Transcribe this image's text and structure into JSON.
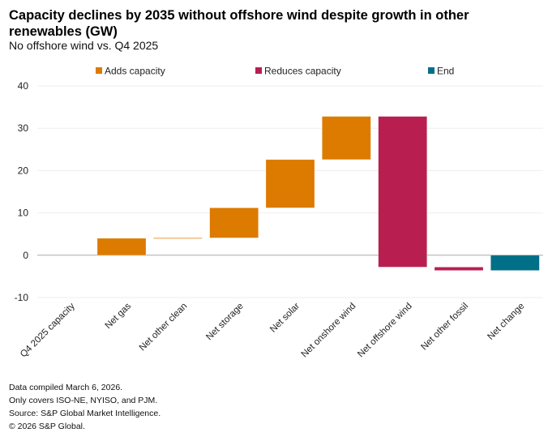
{
  "chart_data": {
    "type": "waterfall",
    "title": "Capacity declines by 2035 without offshore wind despite growth in other renewables (GW)",
    "subtitle": "No offshore wind vs. Q4 2025",
    "categories": [
      "Q4 2025 capacity",
      "Net gas",
      "Net other clean",
      "Net storage",
      "Net solar",
      "Net onshore wind",
      "Net offshore wind",
      "Net other fossil",
      "Net change"
    ],
    "values": [
      0,
      4.0,
      0.1,
      7.1,
      11.4,
      10.2,
      -35.6,
      -0.8,
      -3.6
    ],
    "kinds": [
      "start",
      "add",
      "add",
      "add",
      "add",
      "add",
      "reduce",
      "reduce",
      "end"
    ],
    "ylim": [
      -10,
      40
    ],
    "yticks": [
      -10,
      0,
      10,
      20,
      30,
      40
    ],
    "grid": true,
    "legend": {
      "position": "top",
      "entries": [
        {
          "key": "add",
          "label": "Adds capacity",
          "color": "#DD7A00"
        },
        {
          "key": "reduce",
          "label": "Reduces capacity",
          "color": "#B81F50"
        },
        {
          "key": "end",
          "label": "End",
          "color": "#007088"
        }
      ]
    }
  },
  "footnotes": [
    "Data compiled March 6, 2026.",
    "Only covers ISO-NE, NYISO, and PJM.",
    "Source: S&P Global Market Intelligence.",
    "© 2026 S&P Global."
  ]
}
